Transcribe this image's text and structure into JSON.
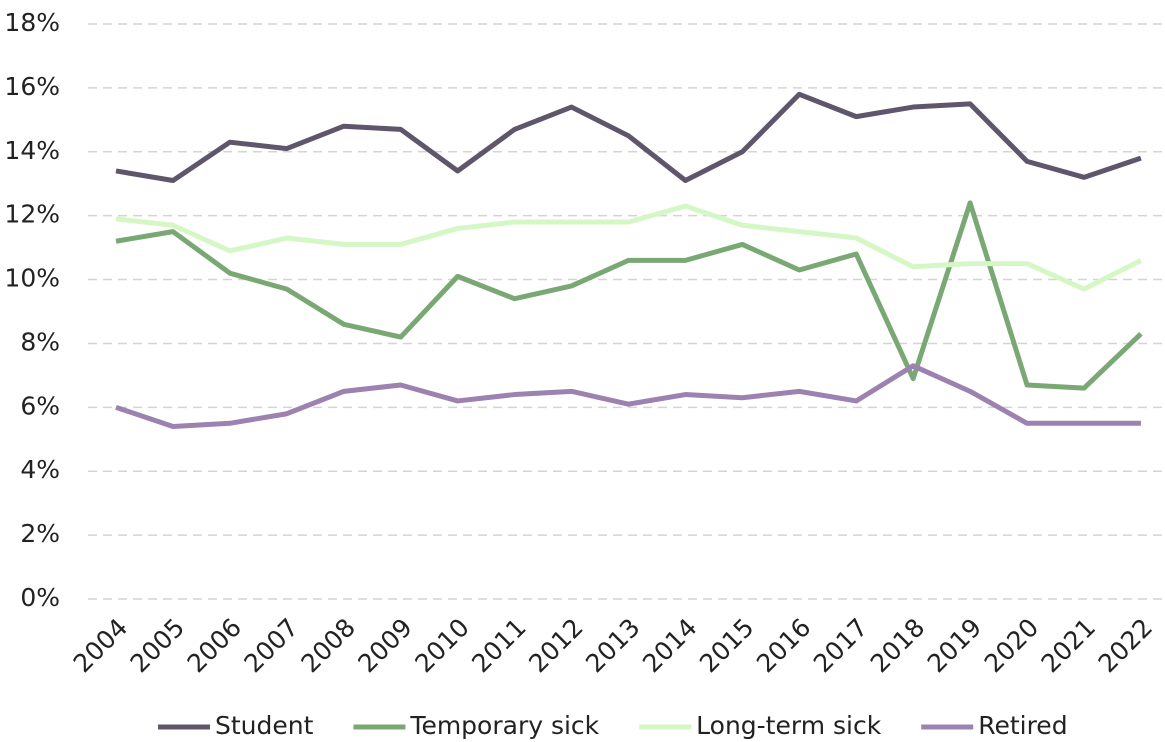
{
  "chart_data": {
    "type": "line",
    "categories": [
      "2004",
      "2005",
      "2006",
      "2007",
      "2008",
      "2009",
      "2010",
      "2011",
      "2012",
      "2013",
      "2014",
      "2015",
      "2016",
      "2017",
      "2018",
      "2019",
      "2020",
      "2021",
      "2022"
    ],
    "series": [
      {
        "name": "Student",
        "color": "#5f566b",
        "values": [
          13.4,
          13.1,
          14.3,
          14.1,
          14.8,
          14.7,
          13.4,
          14.7,
          15.4,
          14.5,
          13.1,
          14.0,
          15.8,
          15.1,
          15.4,
          15.5,
          13.7,
          13.2,
          13.8
        ]
      },
      {
        "name": "Temporary sick",
        "color": "#7aa874",
        "values": [
          11.2,
          11.5,
          10.2,
          9.7,
          8.6,
          8.2,
          10.1,
          9.4,
          9.8,
          10.6,
          10.6,
          11.1,
          10.3,
          10.8,
          6.9,
          12.4,
          6.7,
          6.6,
          8.3
        ]
      },
      {
        "name": "Long-term sick",
        "color": "#d5f7c5",
        "values": [
          11.9,
          11.7,
          10.9,
          11.3,
          11.1,
          11.1,
          11.6,
          11.8,
          11.8,
          11.8,
          12.3,
          11.7,
          11.5,
          11.3,
          10.4,
          10.5,
          10.5,
          9.7,
          10.6
        ]
      },
      {
        "name": "Retired",
        "color": "#9b82b0",
        "values": [
          6.0,
          5.4,
          5.5,
          5.8,
          6.5,
          6.7,
          6.2,
          6.4,
          6.5,
          6.1,
          6.4,
          6.3,
          6.5,
          6.2,
          7.3,
          6.5,
          5.5,
          5.5,
          5.5
        ]
      }
    ],
    "ylim": [
      0,
      18
    ],
    "yticks": [
      {
        "value": 0,
        "label": "0%"
      },
      {
        "value": 2,
        "label": "2%"
      },
      {
        "value": 4,
        "label": "4%"
      },
      {
        "value": 6,
        "label": "6%"
      },
      {
        "value": 8,
        "label": "8%"
      },
      {
        "value": 10,
        "label": "10%"
      },
      {
        "value": 12,
        "label": "12%"
      },
      {
        "value": 14,
        "label": "14%"
      },
      {
        "value": 16,
        "label": "16%"
      },
      {
        "value": 18,
        "label": "18%"
      }
    ],
    "grid": true,
    "legend": "bottom"
  }
}
